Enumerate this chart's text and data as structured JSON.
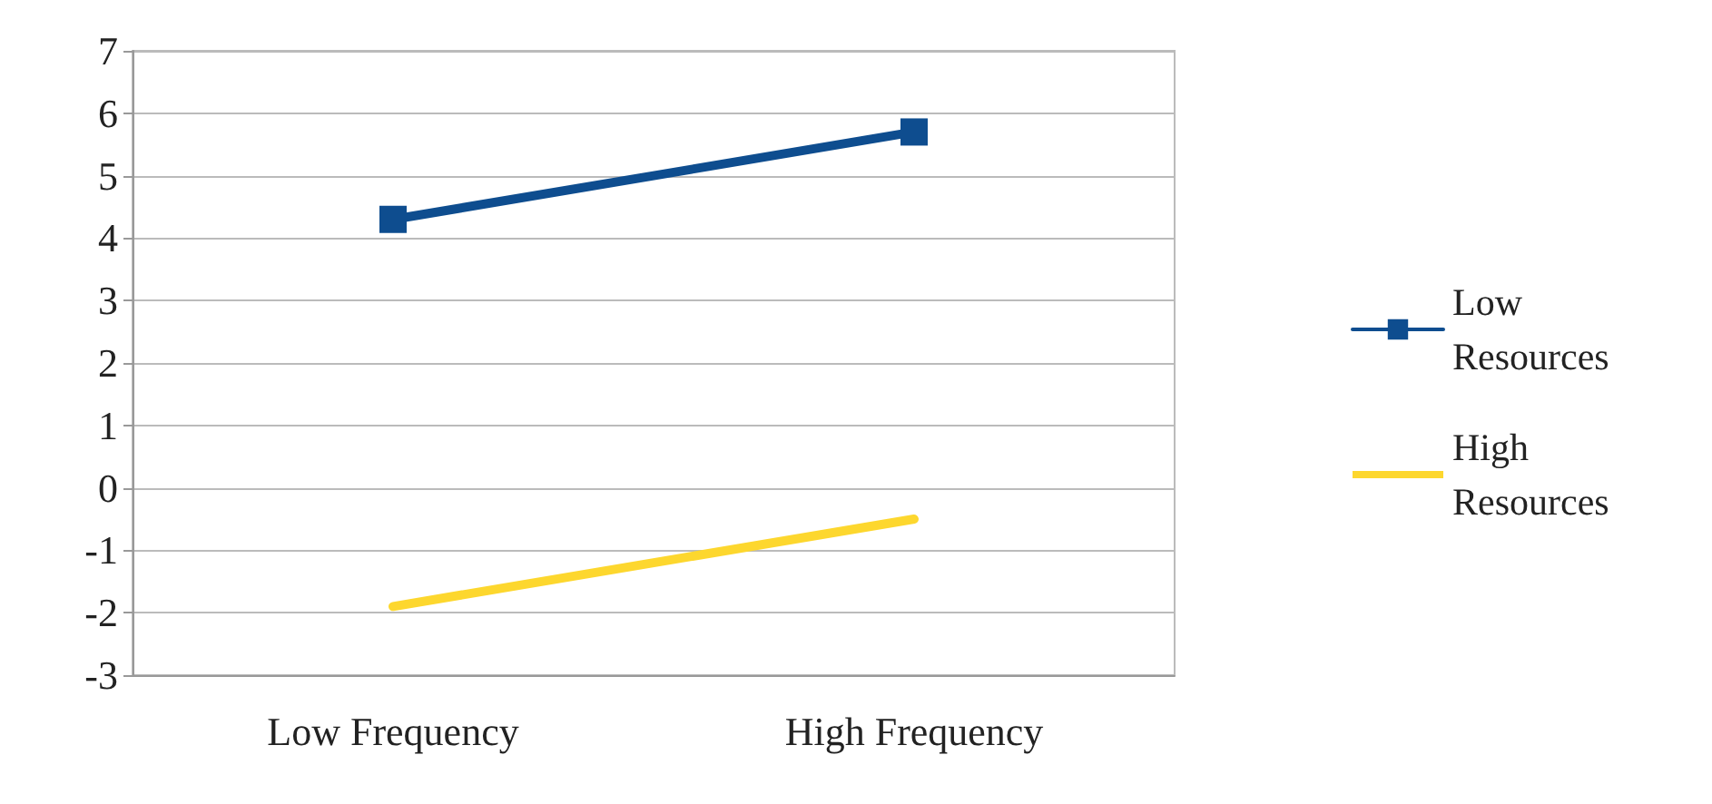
{
  "chart_data": {
    "type": "line",
    "categories": [
      "Low Frequency",
      "High Frequency"
    ],
    "series": [
      {
        "name": "Low Resources",
        "color": "#0e4d8f",
        "values": [
          4.3,
          5.7
        ],
        "marker": "square"
      },
      {
        "name": "High Resources",
        "color": "#fdd72e",
        "values": [
          -1.9,
          -0.5
        ],
        "marker": "none"
      }
    ],
    "ylim": [
      -3,
      7
    ],
    "yticks": [
      -3,
      -2,
      -1,
      0,
      1,
      2,
      3,
      4,
      5,
      6,
      7
    ],
    "grid": "y",
    "legend": "right"
  }
}
